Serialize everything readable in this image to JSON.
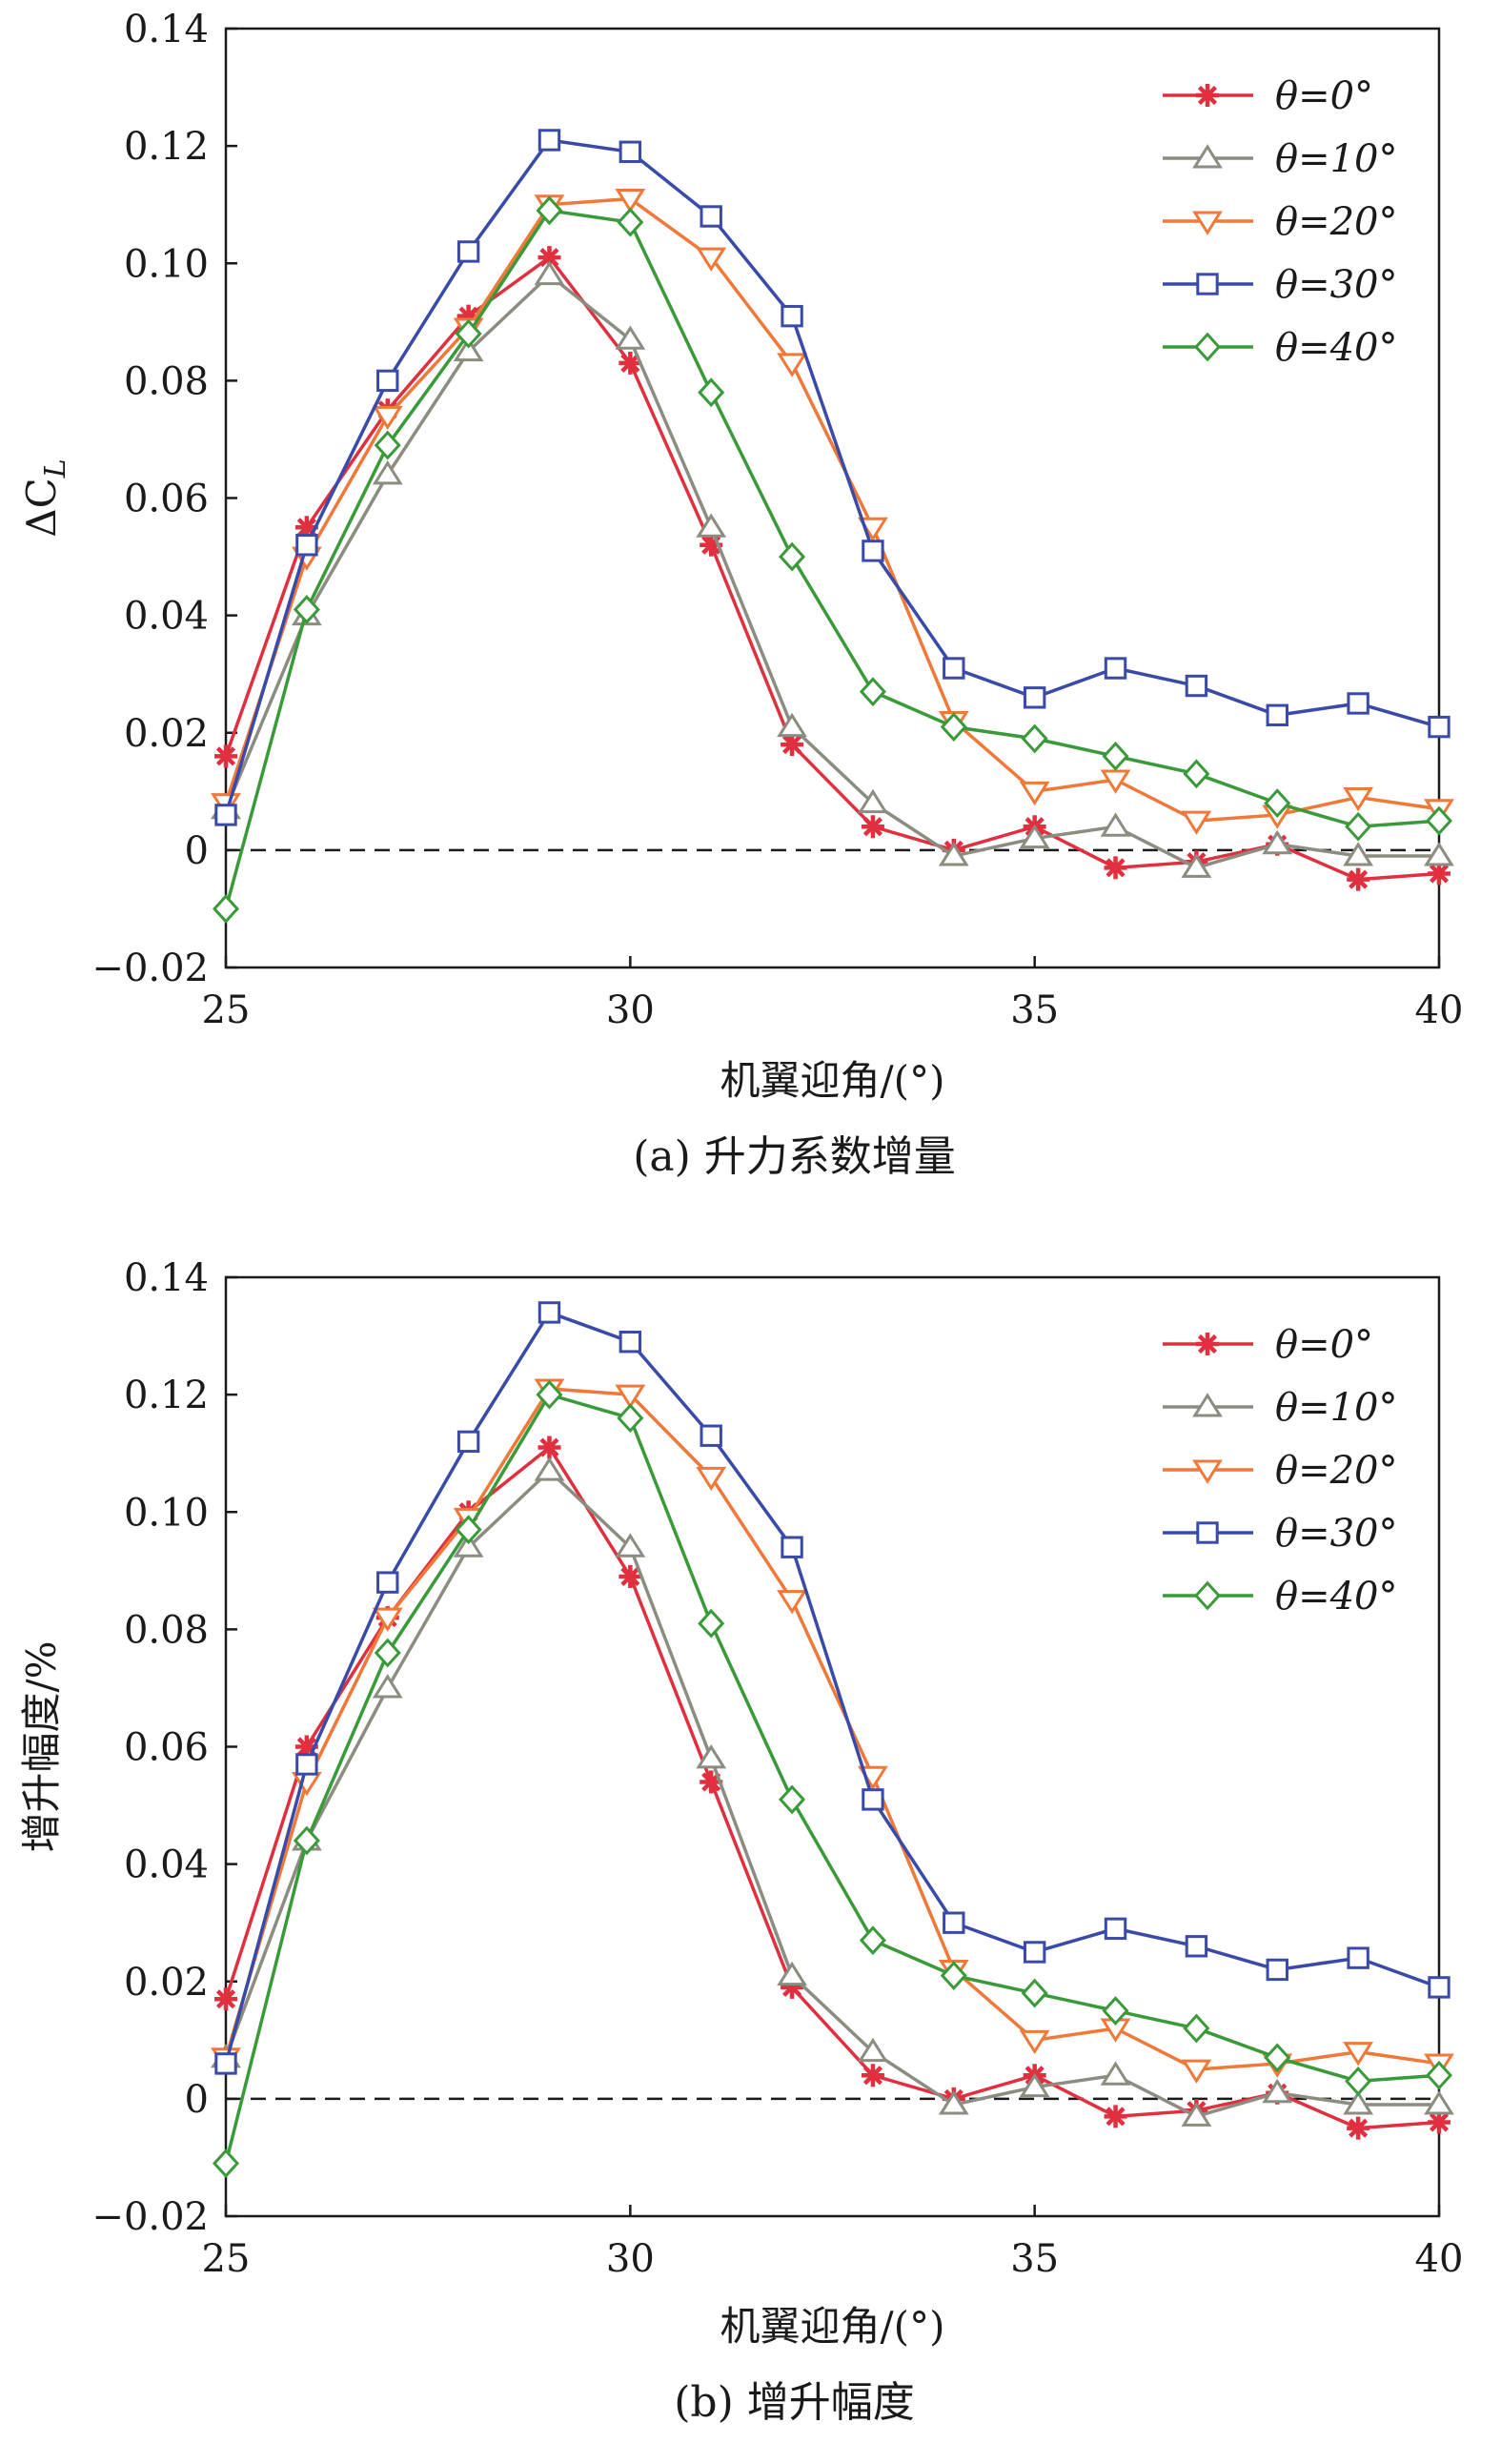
{
  "chart_data": [
    {
      "type": "line",
      "caption": "(a) 升力系数增量",
      "xlabel": "机翼迎角/(°)",
      "ylabel": "ΔC_L",
      "ylabel_main": "ΔC",
      "ylabel_sub": "L",
      "xlim": [
        25,
        40
      ],
      "ylim": [
        -0.02,
        0.14
      ],
      "xticks": [
        25,
        30,
        35,
        40
      ],
      "xtick_labels": [
        "25",
        "30",
        "35",
        "40"
      ],
      "yticks": [
        -0.02,
        0,
        0.02,
        0.04,
        0.06,
        0.08,
        0.1,
        0.12,
        0.14
      ],
      "ytick_labels": [
        "−0.02",
        "0",
        "0.02",
        "0.04",
        "0.06",
        "0.08",
        "0.10",
        "0.12",
        "0.14"
      ],
      "grid": false,
      "reference_line": 0,
      "legend_position": "top-right",
      "x": [
        25,
        26,
        27,
        28,
        29,
        30,
        31,
        32,
        33,
        34,
        35,
        36,
        37,
        38,
        39,
        40
      ],
      "series": [
        {
          "name": "θ=0°",
          "color": "#e03040",
          "marker": "asterisk",
          "values": [
            0.016,
            0.055,
            0.075,
            0.091,
            0.101,
            0.083,
            0.052,
            0.018,
            0.004,
            0.0,
            0.004,
            -0.003,
            -0.002,
            0.001,
            -0.005,
            -0.004
          ]
        },
        {
          "name": "θ=10°",
          "color": "#8c8c80",
          "marker": "triangle-up",
          "values": [
            0.007,
            0.04,
            0.064,
            0.085,
            0.098,
            0.087,
            0.055,
            0.021,
            0.008,
            -0.001,
            0.002,
            0.004,
            -0.003,
            0.001,
            -0.001,
            -0.001
          ]
        },
        {
          "name": "θ=20°",
          "color": "#f07838",
          "marker": "triangle-down",
          "values": [
            0.008,
            0.05,
            0.074,
            0.089,
            0.11,
            0.111,
            0.101,
            0.083,
            0.055,
            0.022,
            0.01,
            0.012,
            0.005,
            0.006,
            0.009,
            0.007
          ]
        },
        {
          "name": "θ=30°",
          "color": "#3a4aa8",
          "marker": "square",
          "values": [
            0.006,
            0.052,
            0.08,
            0.102,
            0.121,
            0.119,
            0.108,
            0.091,
            0.051,
            0.031,
            0.026,
            0.031,
            0.028,
            0.023,
            0.025,
            0.021
          ]
        },
        {
          "name": "θ=40°",
          "color": "#3a9a3a",
          "marker": "diamond",
          "values": [
            -0.01,
            0.041,
            0.069,
            0.088,
            0.109,
            0.107,
            0.078,
            0.05,
            0.027,
            0.021,
            0.019,
            0.016,
            0.013,
            0.008,
            0.004,
            0.005
          ]
        }
      ]
    },
    {
      "type": "line",
      "caption": "(b) 增升幅度",
      "xlabel": "机翼迎角/(°)",
      "ylabel": "增升幅度/%",
      "ylabel_main": "增升幅度/%",
      "ylabel_sub": "",
      "xlim": [
        25,
        40
      ],
      "ylim": [
        -0.02,
        0.14
      ],
      "xticks": [
        25,
        30,
        35,
        40
      ],
      "xtick_labels": [
        "25",
        "30",
        "35",
        "40"
      ],
      "yticks": [
        -0.02,
        0,
        0.02,
        0.04,
        0.06,
        0.08,
        0.1,
        0.12,
        0.14
      ],
      "ytick_labels": [
        "−0.02",
        "0",
        "0.02",
        "0.04",
        "0.06",
        "0.08",
        "0.10",
        "0.12",
        "0.14"
      ],
      "grid": false,
      "reference_line": 0,
      "legend_position": "top-right",
      "x": [
        25,
        26,
        27,
        28,
        29,
        30,
        31,
        32,
        33,
        34,
        35,
        36,
        37,
        38,
        39,
        40
      ],
      "series": [
        {
          "name": "θ=0°",
          "color": "#e03040",
          "marker": "asterisk",
          "values": [
            0.017,
            0.06,
            0.082,
            0.1,
            0.111,
            0.089,
            0.054,
            0.019,
            0.004,
            0.0,
            0.004,
            -0.003,
            -0.002,
            0.001,
            -0.005,
            -0.004
          ]
        },
        {
          "name": "θ=10°",
          "color": "#8c8c80",
          "marker": "triangle-up",
          "values": [
            0.007,
            0.044,
            0.07,
            0.094,
            0.107,
            0.094,
            0.058,
            0.021,
            0.008,
            -0.001,
            0.002,
            0.004,
            -0.003,
            0.001,
            -0.001,
            -0.001
          ]
        },
        {
          "name": "θ=20°",
          "color": "#f07838",
          "marker": "triangle-down",
          "values": [
            0.007,
            0.054,
            0.082,
            0.099,
            0.121,
            0.12,
            0.106,
            0.085,
            0.055,
            0.022,
            0.01,
            0.012,
            0.005,
            0.006,
            0.008,
            0.006
          ]
        },
        {
          "name": "θ=30°",
          "color": "#3a4aa8",
          "marker": "square",
          "values": [
            0.006,
            0.057,
            0.088,
            0.112,
            0.134,
            0.129,
            0.113,
            0.094,
            0.051,
            0.03,
            0.025,
            0.029,
            0.026,
            0.022,
            0.024,
            0.019
          ]
        },
        {
          "name": "θ=40°",
          "color": "#3a9a3a",
          "marker": "diamond",
          "values": [
            -0.011,
            0.044,
            0.076,
            0.097,
            0.12,
            0.116,
            0.081,
            0.051,
            0.027,
            0.021,
            0.018,
            0.015,
            0.012,
            0.007,
            0.003,
            0.004
          ]
        }
      ]
    }
  ]
}
